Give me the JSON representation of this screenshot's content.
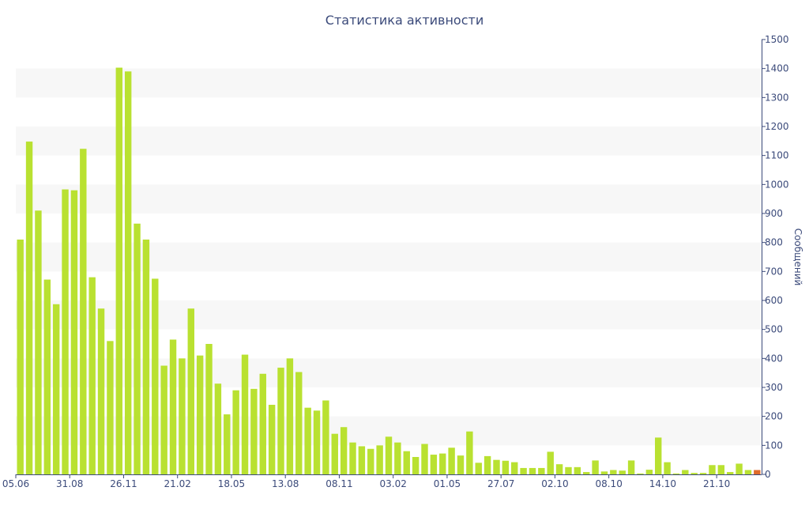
{
  "chart_data": {
    "type": "bar",
    "title": "Статистика активности",
    "ylabel": "Сообщений",
    "ylim": [
      0,
      1500
    ],
    "y_ticks": [
      0,
      100,
      200,
      300,
      400,
      500,
      600,
      700,
      800,
      900,
      1000,
      1100,
      1200,
      1300,
      1400,
      1500
    ],
    "y_axis_side": "right",
    "x_tick_labels": [
      {
        "index": 0,
        "label": "05.06"
      },
      {
        "index": 6,
        "label": "31.08"
      },
      {
        "index": 12,
        "label": "26.11"
      },
      {
        "index": 18,
        "label": "21.02"
      },
      {
        "index": 24,
        "label": "18.05"
      },
      {
        "index": 30,
        "label": "13.08"
      },
      {
        "index": 36,
        "label": "08.11"
      },
      {
        "index": 42,
        "label": "03.02"
      },
      {
        "index": 48,
        "label": "01.05"
      },
      {
        "index": 54,
        "label": "27.07"
      },
      {
        "index": 60,
        "label": "02.10"
      },
      {
        "index": 66,
        "label": "08.10"
      },
      {
        "index": 72,
        "label": "14.10"
      },
      {
        "index": 78,
        "label": "21.10"
      }
    ],
    "values": [
      810,
      1148,
      910,
      672,
      587,
      983,
      980,
      1123,
      680,
      572,
      460,
      1403,
      1390,
      865,
      810,
      675,
      375,
      465,
      400,
      572,
      410,
      450,
      313,
      207,
      290,
      413,
      295,
      347,
      240,
      368,
      400,
      353,
      230,
      220,
      255,
      140,
      163,
      110,
      97,
      88,
      100,
      130,
      110,
      80,
      60,
      105,
      68,
      72,
      92,
      65,
      148,
      40,
      63,
      50,
      47,
      42,
      22,
      22,
      22,
      78,
      35,
      25,
      25,
      8,
      48,
      10,
      15,
      13,
      48,
      3,
      16,
      127,
      42,
      3,
      15,
      5,
      5,
      32,
      32,
      8,
      37,
      15,
      15
    ],
    "highlight_index": 82,
    "grid": "alternating horizontal bands",
    "colors": {
      "bar": "#b9e131",
      "bar_highlight": "#e06b2a",
      "axis": "#3b4a7a",
      "band": "#f7f7f7"
    }
  }
}
